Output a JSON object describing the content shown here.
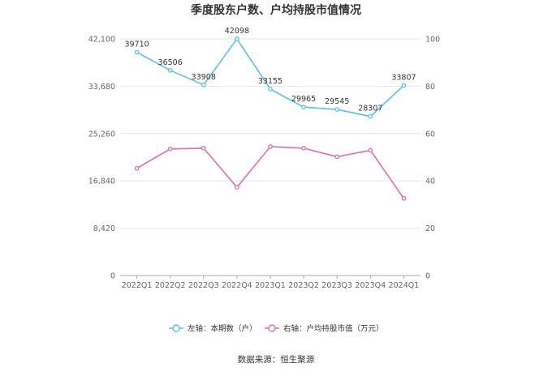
{
  "chart_data": {
    "type": "line",
    "title": "季度股东户数、户均持股市值情况",
    "categories": [
      "2022Q1",
      "2022Q2",
      "2022Q3",
      "2022Q4",
      "2023Q1",
      "2023Q2",
      "2023Q3",
      "2023Q4",
      "2024Q1"
    ],
    "left_axis": {
      "ylim": [
        0,
        42100
      ],
      "ticks": [
        "0",
        "8,420",
        "16,840",
        "25,260",
        "33,680",
        "42,100"
      ],
      "tick_values": [
        0,
        8420,
        16840,
        25260,
        33680,
        42100
      ]
    },
    "right_axis": {
      "ylim": [
        0,
        100
      ],
      "ticks": [
        "0",
        "20",
        "40",
        "60",
        "80",
        "100"
      ],
      "tick_values": [
        0,
        20,
        40,
        60,
        80,
        100
      ]
    },
    "series": [
      {
        "name": "左轴：本期数（户）",
        "axis": "left",
        "color": "#5bc0eb",
        "values": [
          39710,
          36506,
          33908,
          42098,
          33155,
          29965,
          29545,
          28307,
          33807
        ],
        "labels": [
          "39710",
          "36506",
          "33908",
          "42098",
          "33155",
          "29965",
          "29545",
          "28307",
          "33807"
        ]
      },
      {
        "name": "右轴：户均持股市值（万元）",
        "axis": "right",
        "color": "#d86fb3",
        "values": [
          45.3,
          53.5,
          53.8,
          37.3,
          54.5,
          53.8,
          50.2,
          52.9,
          32.6
        ],
        "labels": []
      }
    ],
    "grid": true,
    "legend_position": "bottom"
  },
  "source": "数据来源：恒生聚源"
}
